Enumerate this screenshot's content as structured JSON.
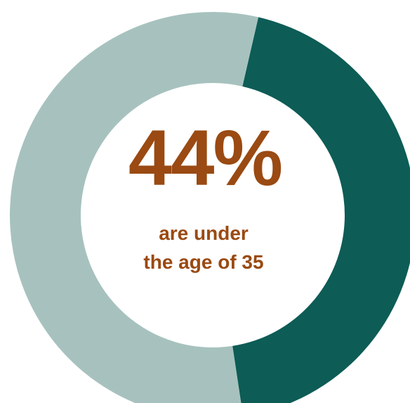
{
  "colors": {
    "highlight": "#0d5c56",
    "rest": "#a7c2be",
    "text_accent": "#9a4a12",
    "background": "#ffffff"
  },
  "headline": {
    "value": "44%",
    "caption_line1": "are under",
    "caption_line2": "the age of 35"
  },
  "chart_data": {
    "type": "pie",
    "style": "donut",
    "slices": [
      {
        "label": "are under the age of 35",
        "value": 44
      },
      {
        "label": "",
        "value": 56
      }
    ],
    "annotations": [
      "44%",
      "are under",
      "the age of 35"
    ],
    "legend": "none"
  }
}
